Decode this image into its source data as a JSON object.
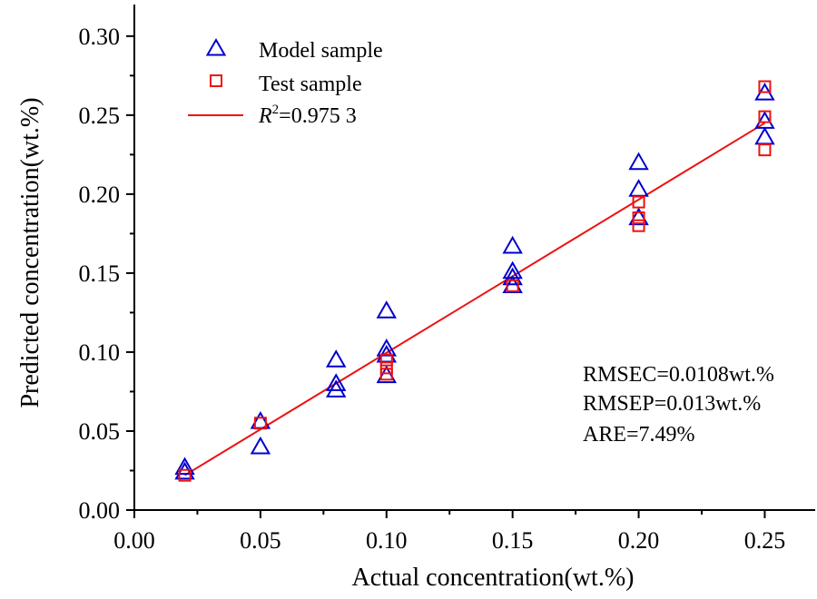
{
  "chart_data": {
    "type": "scatter",
    "xlabel": "Actual concentration(wt.%)",
    "ylabel": "Predicted concentration(wt.%)",
    "xlim": [
      0,
      0.27
    ],
    "ylim": [
      0,
      0.32
    ],
    "x_ticks": [
      "0.00",
      "0.05",
      "0.10",
      "0.15",
      "0.20",
      "0.25"
    ],
    "y_ticks": [
      "0.00",
      "0.05",
      "0.10",
      "0.15",
      "0.20",
      "0.25",
      "0.30"
    ],
    "series": [
      {
        "name": "Model sample",
        "marker": "triangle",
        "color": "#0000cc",
        "points": [
          [
            0.02,
            0.027
          ],
          [
            0.02,
            0.024
          ],
          [
            0.05,
            0.056
          ],
          [
            0.05,
            0.04
          ],
          [
            0.08,
            0.095
          ],
          [
            0.08,
            0.08
          ],
          [
            0.08,
            0.076
          ],
          [
            0.1,
            0.126
          ],
          [
            0.1,
            0.102
          ],
          [
            0.1,
            0.098
          ],
          [
            0.1,
            0.085
          ],
          [
            0.15,
            0.167
          ],
          [
            0.15,
            0.151
          ],
          [
            0.15,
            0.147
          ],
          [
            0.15,
            0.142
          ],
          [
            0.2,
            0.22
          ],
          [
            0.2,
            0.203
          ],
          [
            0.2,
            0.185
          ],
          [
            0.25,
            0.264
          ],
          [
            0.25,
            0.246
          ],
          [
            0.25,
            0.236
          ]
        ]
      },
      {
        "name": "Test sample",
        "marker": "square",
        "color": "#ee1111",
        "points": [
          [
            0.02,
            0.022
          ],
          [
            0.05,
            0.055
          ],
          [
            0.1,
            0.095
          ],
          [
            0.1,
            0.09
          ],
          [
            0.1,
            0.086
          ],
          [
            0.15,
            0.142
          ],
          [
            0.2,
            0.195
          ],
          [
            0.2,
            0.185
          ],
          [
            0.2,
            0.18
          ],
          [
            0.25,
            0.268
          ],
          [
            0.25,
            0.249
          ],
          [
            0.25,
            0.228
          ]
        ]
      }
    ],
    "fit_line": {
      "name": "R²=0.975 3",
      "label_base": "R",
      "label_sup": "2",
      "label_rest": "=0.975 3",
      "color": "#ee1111",
      "x": [
        0.02,
        0.25
      ],
      "y": [
        0.022,
        0.245
      ]
    },
    "annotations": [
      "RMSEC=0.0108wt.%",
      "RMSEP=0.013wt.%",
      "ARE=7.49%"
    ],
    "legend_position": "top-left",
    "grid": false
  }
}
